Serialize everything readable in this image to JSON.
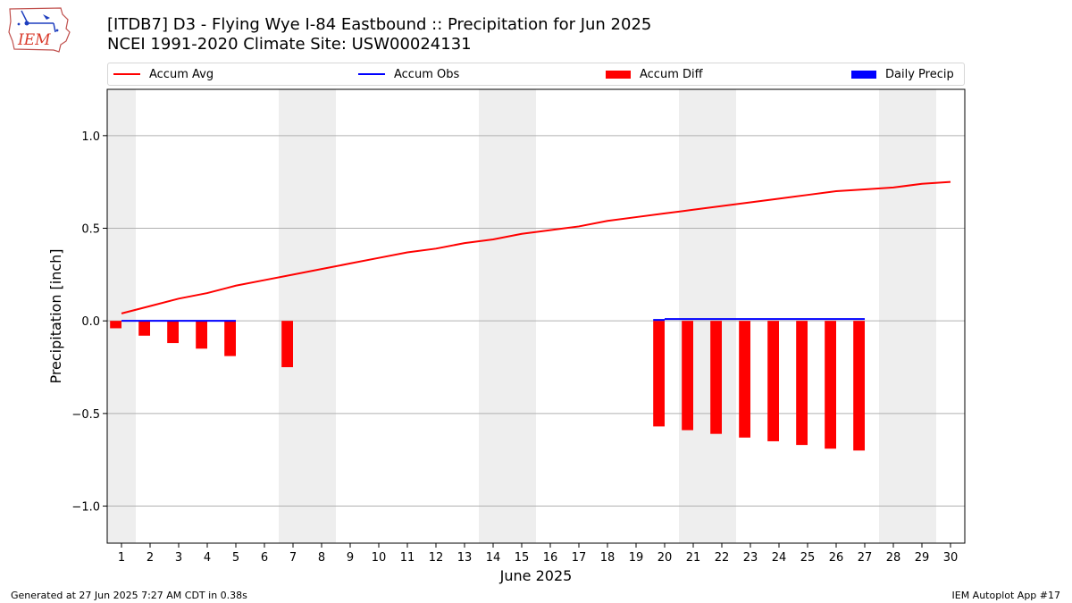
{
  "title_line1": "[ITDB7] D3 - Flying Wye I-84 Eastbound  :: Precipitation for Jun 2025",
  "title_line2": "NCEI 1991-2020 Climate Site: USW00024131",
  "logo_text": "IEM",
  "footer_left": "Generated at 27 Jun 2025 7:27 AM CDT in 0.38s",
  "footer_right": "IEM Autoplot App #17",
  "colors": {
    "avg": "#ff0000",
    "obs": "#0000ff",
    "diff": "#ff0000",
    "daily": "#0000ff",
    "weekend": "#eeeeee",
    "grid": "#b0b0b0"
  },
  "chart_data": {
    "type": "bar",
    "xlabel": "June 2025",
    "ylabel": "Precipitation [inch]",
    "xlim": [
      0.5,
      30.5
    ],
    "ylim": [
      -1.2,
      1.25
    ],
    "yticks": [
      -1.0,
      -0.5,
      0.0,
      0.5,
      1.0
    ],
    "ytick_labels": [
      "−1.0",
      "−0.5",
      "0.0",
      "0.5",
      "1.0"
    ],
    "x_ticks": [
      1,
      2,
      3,
      4,
      5,
      6,
      7,
      8,
      9,
      10,
      11,
      12,
      13,
      14,
      15,
      16,
      17,
      18,
      19,
      20,
      21,
      22,
      23,
      24,
      25,
      26,
      27,
      28,
      29,
      30
    ],
    "grid": "horizontal",
    "legend_position": "top",
    "legend": [
      "Accum Avg",
      "Accum Obs",
      "Accum Diff",
      "Daily Precip"
    ],
    "weekend_days": [
      1,
      7,
      8,
      14,
      15,
      21,
      22,
      28,
      29
    ],
    "accum_avg": {
      "days": [
        1,
        2,
        3,
        4,
        5,
        6,
        7,
        8,
        9,
        10,
        11,
        12,
        13,
        14,
        15,
        16,
        17,
        18,
        19,
        20,
        21,
        22,
        23,
        24,
        25,
        26,
        27,
        28,
        29,
        30
      ],
      "values": [
        0.04,
        0.08,
        0.12,
        0.15,
        0.19,
        0.22,
        0.25,
        0.28,
        0.31,
        0.34,
        0.37,
        0.39,
        0.42,
        0.44,
        0.47,
        0.49,
        0.51,
        0.54,
        0.56,
        0.58,
        0.6,
        0.62,
        0.64,
        0.66,
        0.68,
        0.7,
        0.71,
        0.72,
        0.74,
        0.75
      ]
    },
    "accum_obs": [
      {
        "days": [
          1,
          2,
          3,
          4,
          5
        ],
        "values": [
          0.0,
          0.0,
          0.0,
          0.0,
          0.0
        ]
      },
      {
        "days": [
          20,
          21,
          22,
          23,
          24,
          25,
          26,
          27
        ],
        "values": [
          0.01,
          0.01,
          0.01,
          0.01,
          0.01,
          0.01,
          0.01,
          0.01
        ]
      }
    ],
    "accum_diff": {
      "days": [
        1,
        2,
        3,
        4,
        5,
        7,
        20,
        21,
        22,
        23,
        24,
        25,
        26,
        27
      ],
      "values": [
        -0.04,
        -0.08,
        -0.12,
        -0.15,
        -0.19,
        -0.25,
        -0.57,
        -0.59,
        -0.61,
        -0.63,
        -0.65,
        -0.67,
        -0.69,
        -0.7
      ]
    },
    "daily_precip": {
      "days": [
        20
      ],
      "values": [
        0.01
      ]
    }
  }
}
